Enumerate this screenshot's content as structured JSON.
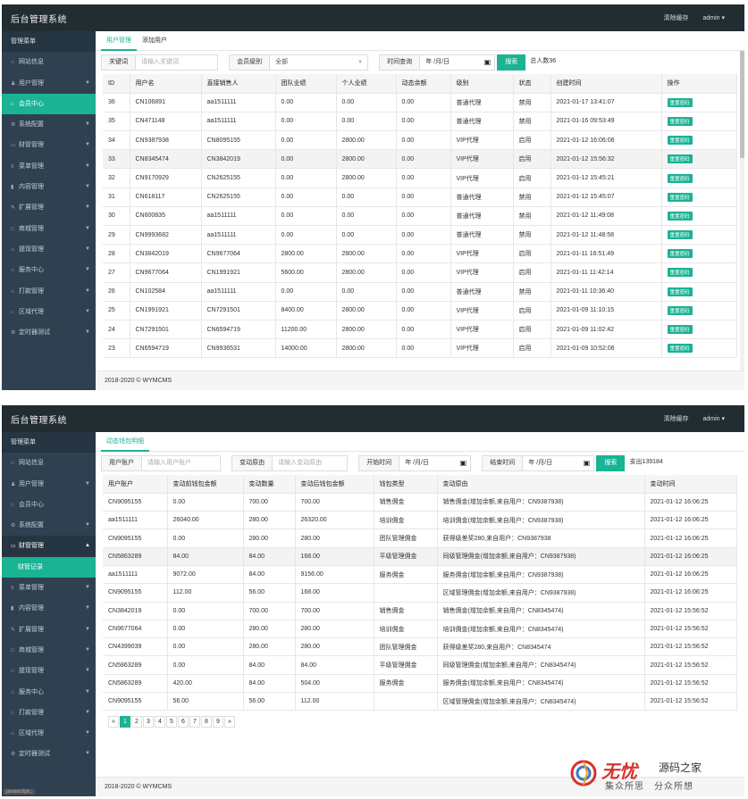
{
  "app_title": "后台管理系统",
  "top_right": {
    "clear_cache": "清除缓存",
    "user": "admin ▾"
  },
  "footer_text": "2018-2020 © WYMCMS",
  "shot1": {
    "sidebar": [
      {
        "label": "管理菜单",
        "icon": "",
        "type": "head"
      },
      {
        "label": "网站信息",
        "icon": "home-icon"
      },
      {
        "label": "用户管理",
        "icon": "user-icon",
        "chev": true
      },
      {
        "label": "会员中心",
        "icon": "home-icon",
        "type": "active"
      },
      {
        "label": "系统配置",
        "icon": "gears-icon",
        "chev": true
      },
      {
        "label": "财管管理",
        "icon": "card-icon",
        "chev": true
      },
      {
        "label": "菜单管理",
        "icon": "list-icon",
        "chev": true
      },
      {
        "label": "内容管理",
        "icon": "book-icon",
        "chev": true
      },
      {
        "label": "扩展管理",
        "icon": "wrench-icon",
        "chev": true
      },
      {
        "label": "商城管理",
        "icon": "box-icon",
        "chev": true
      },
      {
        "label": "提现管理",
        "icon": "home-icon",
        "chev": true
      },
      {
        "label": "服务中心",
        "icon": "home-icon",
        "chev": true
      },
      {
        "label": "打款管理",
        "icon": "home-icon",
        "chev": true
      },
      {
        "label": "区域代理",
        "icon": "home-icon",
        "chev": true
      },
      {
        "label": "定时器测试",
        "icon": "gears-icon",
        "chev": true
      }
    ],
    "tabs": [
      "用户管理",
      "添加用户"
    ],
    "filter": {
      "keyword_label": "关键词",
      "keyword_placeholder": "请输入关键词",
      "level_label": "会员级别",
      "level_value": "全部",
      "time_label": "时间查询",
      "date_value": "年 /月/日",
      "search_btn": "搜索",
      "total_text": "总人数36"
    },
    "columns": [
      "ID",
      "用户名",
      "直接销售人",
      "团队业绩",
      "个人业绩",
      "动态余额",
      "级别",
      "状态",
      "创建时间",
      "操作"
    ],
    "rows": [
      [
        "36",
        "CN106891",
        "aa1511111",
        "0.00",
        "0.00",
        "0.00",
        "普通代理",
        "禁用",
        "2021-01-17 13:41:07",
        "重置密码"
      ],
      [
        "35",
        "CN471148",
        "aa1511111",
        "0.00",
        "0.00",
        "0.00",
        "普通代理",
        "禁用",
        "2021-01-16 09:53:49",
        "重置密码"
      ],
      [
        "34",
        "CN9387938",
        "CN8095155",
        "0.00",
        "2800.00",
        "0.00",
        "VIP代理",
        "启用",
        "2021-01-12 16:06:06",
        "重置密码"
      ],
      [
        "33",
        "CN8345474",
        "CN3842019",
        "0.00",
        "2800.00",
        "0.00",
        "VIP代理",
        "启用",
        "2021-01-12 15:56:32",
        "重置密码"
      ],
      [
        "32",
        "CN9170929",
        "CN2625155",
        "0.00",
        "2800.00",
        "0.00",
        "VIP代理",
        "启用",
        "2021-01-12 15:45:21",
        "重置密码"
      ],
      [
        "31",
        "CN618117",
        "CN2625155",
        "0.00",
        "0.00",
        "0.00",
        "普通代理",
        "禁用",
        "2021-01-12 15:45:07",
        "重置密码"
      ],
      [
        "30",
        "CN600835",
        "aa1511111",
        "0.00",
        "0.00",
        "0.00",
        "普通代理",
        "禁用",
        "2021-01-12 11:49:08",
        "重置密码"
      ],
      [
        "29",
        "CN9993682",
        "aa1511111",
        "0.00",
        "0.00",
        "0.00",
        "普通代理",
        "禁用",
        "2021-01-12 11:48:58",
        "重置密码"
      ],
      [
        "28",
        "CN3842019",
        "CN9677064",
        "2800.00",
        "2800.00",
        "0.00",
        "VIP代理",
        "启用",
        "2021-01-11 16:51:49",
        "重置密码"
      ],
      [
        "27",
        "CN9677064",
        "CN1991921",
        "5600.00",
        "2800.00",
        "0.00",
        "VIP代理",
        "启用",
        "2021-01-11 11:42:14",
        "重置密码"
      ],
      [
        "26",
        "CN102584",
        "aa1511111",
        "0.00",
        "0.00",
        "0.00",
        "普通代理",
        "禁用",
        "2021-01-11 10:36:40",
        "重置密码"
      ],
      [
        "25",
        "CN1991921",
        "CN7291501",
        "8400.00",
        "2800.00",
        "0.00",
        "VIP代理",
        "启用",
        "2021-01-09 11:10:15",
        "重置密码"
      ],
      [
        "24",
        "CN7291501",
        "CN6594719",
        "11200.00",
        "2800.00",
        "0.00",
        "VIP代理",
        "启用",
        "2021-01-09 11:02:42",
        "重置密码"
      ],
      [
        "23",
        "CN6594719",
        "CN9936531",
        "14000.00",
        "2800.00",
        "0.00",
        "VIP代理",
        "启用",
        "2021-01-09 10:52:06",
        "重置密码"
      ]
    ]
  },
  "shot2": {
    "sidebar": [
      {
        "label": "管理菜单",
        "icon": "",
        "type": "head"
      },
      {
        "label": "网站信息",
        "icon": "home-icon"
      },
      {
        "label": "用户管理",
        "icon": "user-icon",
        "chev": true
      },
      {
        "label": "会员中心",
        "icon": "home-icon"
      },
      {
        "label": "系统配置",
        "icon": "gears-icon",
        "chev": true
      },
      {
        "label": "财管管理",
        "icon": "card-icon",
        "chev": true,
        "type": "open"
      },
      {
        "label": "财管记录",
        "icon": "",
        "type": "sub"
      },
      {
        "label": "菜单管理",
        "icon": "list-icon",
        "chev": true
      },
      {
        "label": "内容管理",
        "icon": "book-icon",
        "chev": true
      },
      {
        "label": "扩展管理",
        "icon": "wrench-icon",
        "chev": true
      },
      {
        "label": "商城管理",
        "icon": "box-icon",
        "chev": true
      },
      {
        "label": "提现管理",
        "icon": "home-icon",
        "chev": true
      },
      {
        "label": "服务中心",
        "icon": "home-icon",
        "chev": true
      },
      {
        "label": "打款管理",
        "icon": "home-icon",
        "chev": true
      },
      {
        "label": "区域代理",
        "icon": "home-icon",
        "chev": true
      },
      {
        "label": "定时器测试",
        "icon": "gears-icon",
        "chev": true
      }
    ],
    "tabs": [
      "动态钱包明细"
    ],
    "filter": {
      "account_label": "用户账户",
      "account_placeholder": "请输入用户账户",
      "source_label": "变动原由",
      "source_placeholder": "请输入变动原由",
      "start_label": "开始时间",
      "end_label": "结束时间",
      "date_value": "年 /月/日",
      "search_btn": "搜索",
      "total_text": "支出139184"
    },
    "columns": [
      "用户账户",
      "变动前钱包金额",
      "变动数量",
      "变动后钱包金额",
      "钱包类型",
      "变动原由",
      "变动时间"
    ],
    "rows": [
      [
        "CN9095155",
        "0.00",
        "700.00",
        "700.00",
        "销售佣金",
        "销售佣金(增加余额,来自用户：CN9387938)",
        "2021-01-12 16:06:25"
      ],
      [
        "aa1511111",
        "26040.00",
        "280.00",
        "26320.00",
        "培训佣金",
        "培训佣金(增加余额,来自用户：CN9387938)",
        "2021-01-12 16:06:25"
      ],
      [
        "CN9095155",
        "0.00",
        "280.00",
        "280.00",
        "团队管理佣金",
        "获得级差奖280,来自用户：CN9387938",
        "2021-01-12 16:06:25"
      ],
      [
        "CN5863289",
        "84.00",
        "84.00",
        "168.00",
        "平级管理佣金",
        "同级管理佣金(增加余额,来自用户：CN9387938)",
        "2021-01-12 16:06:25"
      ],
      [
        "aa1511111",
        "9072.00",
        "84.00",
        "9156.00",
        "服务佣金",
        "服务佣金(增加余额,来自用户：CN9387938)",
        "2021-01-12 16:06:25"
      ],
      [
        "CN9095155",
        "112.00",
        "56.00",
        "168.00",
        "",
        "区域管理佣金(增加余额,来自用户：CN9387938)",
        "2021-01-12 16:06:25"
      ],
      [
        "CN3842019",
        "0.00",
        "700.00",
        "700.00",
        "销售佣金",
        "销售佣金(增加余额,来自用户：CN8345474)",
        "2021-01-12 15:56:52"
      ],
      [
        "CN9677064",
        "0.00",
        "280.00",
        "280.00",
        "培训佣金",
        "培训佣金(增加余额,来自用户：CN8345474)",
        "2021-01-12 15:56:52"
      ],
      [
        "CN4399039",
        "0.00",
        "280.00",
        "280.00",
        "团队管理佣金",
        "获得级差奖280,来自用户：CN8345474",
        "2021-01-12 15:56:52"
      ],
      [
        "CN5863289",
        "0.00",
        "84.00",
        "84.00",
        "平级管理佣金",
        "同级管理佣金(增加余额,来自用户：CN8345474)",
        "2021-01-12 15:56:52"
      ],
      [
        "CN5863289",
        "420.00",
        "84.00",
        "504.00",
        "服务佣金",
        "服务佣金(增加余额,来自用户：CN8345474)",
        "2021-01-12 15:56:52"
      ],
      [
        "CN9095155",
        "56.00",
        "56.00",
        "112.00",
        "",
        "区域管理佣金(增加余额,来自用户：CN8345474)",
        "2021-01-12 15:56:52"
      ]
    ],
    "pager": [
      "«",
      "1",
      "2",
      "3",
      "4",
      "5",
      "6",
      "7",
      "8",
      "9",
      "»"
    ],
    "pager_current": "1"
  },
  "js_tag": "javascript:;",
  "watermark": {
    "big": "无忧",
    "site": "源码之家",
    "slogan": "集众所思　分众所想"
  },
  "colors": {
    "accent": "#1ab394",
    "sidebar": "#2f4050",
    "topbar": "#222d32"
  }
}
